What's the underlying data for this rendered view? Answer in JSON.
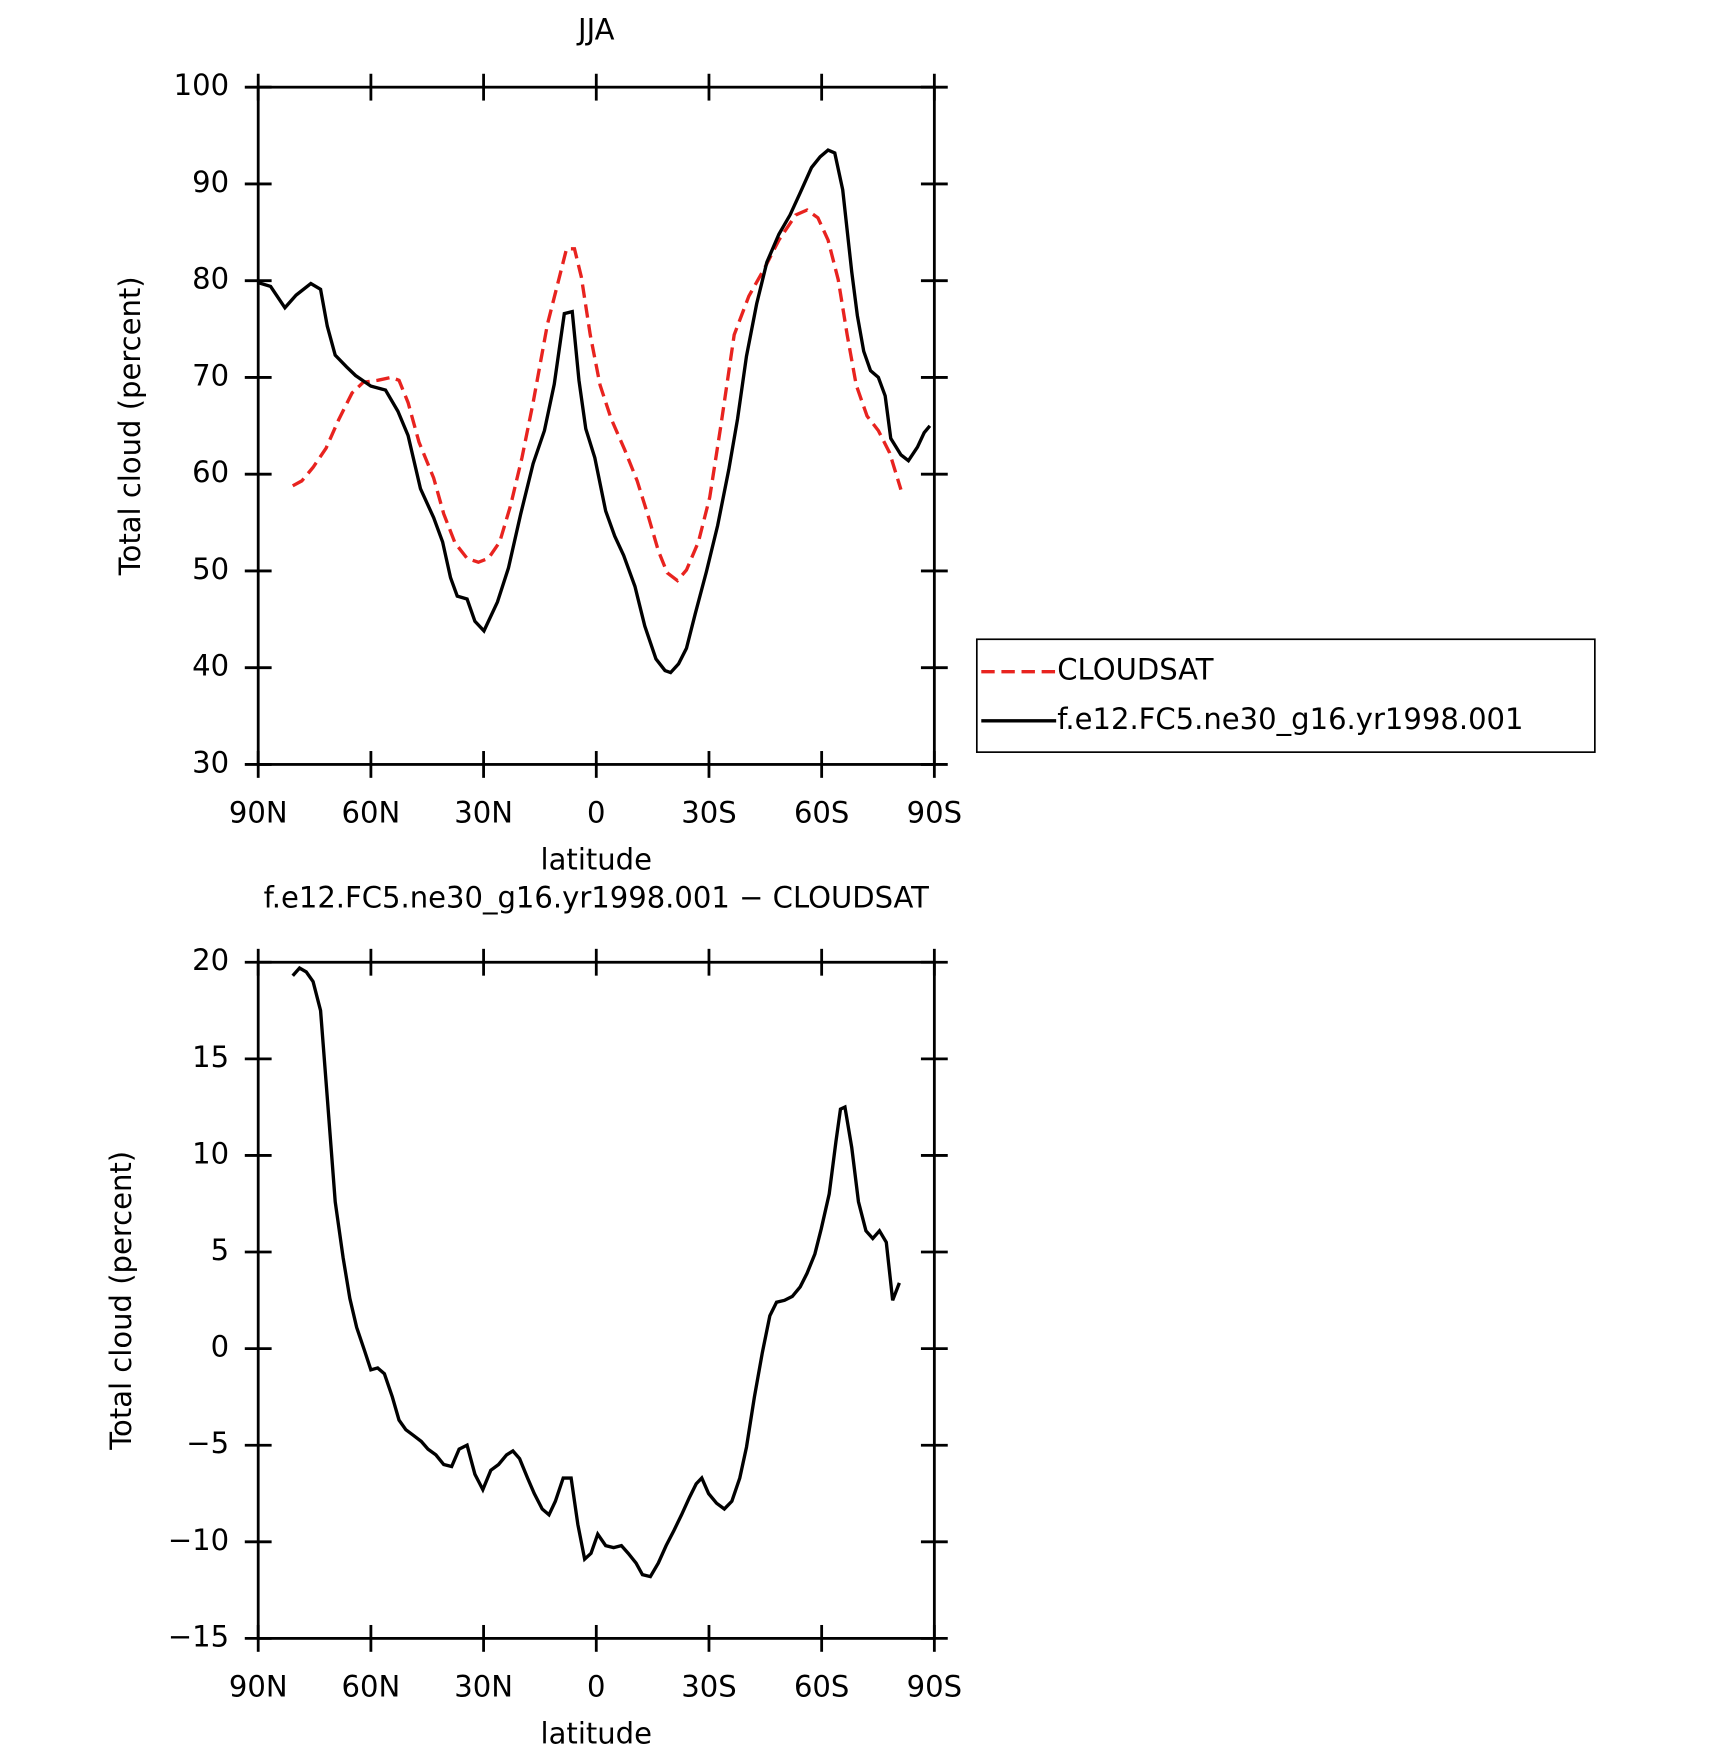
{
  "chart_data": [
    {
      "type": "line",
      "title": "JJA",
      "xlabel": "latitude",
      "ylabel": "Total cloud (percent)",
      "xlim": [
        90,
        -90
      ],
      "xticks": [
        {
          "value": 90,
          "label": "90N"
        },
        {
          "value": 60,
          "label": "60N"
        },
        {
          "value": 30,
          "label": "30N"
        },
        0,
        {
          "value": -30,
          "label": "30S"
        },
        {
          "value": -60,
          "label": "60S"
        },
        {
          "value": -90,
          "label": "90S"
        }
      ],
      "ylim": [
        30,
        100
      ],
      "yticks": [
        30,
        40,
        50,
        60,
        70,
        80,
        90,
        100
      ],
      "legend": "right",
      "series": [
        {
          "name": "CLOUDSAT",
          "color": "#e8231f",
          "line_style": "dashed",
          "x": [
            80.8,
            78.4,
            75.4,
            71.9,
            68.6,
            65,
            62,
            58.2,
            54.6,
            52.5,
            50.1,
            47.2,
            43.3,
            40.6,
            37.6,
            34.4,
            31.4,
            28.7,
            25.7,
            22.8,
            19.8,
            16.8,
            13,
            10,
            7.9,
            5.8,
            4,
            1.6,
            -1,
            -4,
            -7.6,
            -10.9,
            -13.8,
            -16.5,
            -18.9,
            -21.6,
            -24,
            -27.2,
            -30.2,
            -33.2,
            -36.7,
            -40.6,
            -44.8,
            -48.6,
            -53.1,
            -56.1,
            -59,
            -61.7,
            -64.4,
            -66.8,
            -69.2,
            -72.1,
            -75.1,
            -78.1,
            -81.1
          ],
          "values": [
            58.8,
            59.3,
            60.7,
            62.7,
            65.6,
            68.4,
            69.5,
            69.7,
            70,
            69.7,
            67.4,
            63.3,
            59.6,
            55.9,
            52.9,
            51.3,
            50.9,
            51.3,
            53,
            56.8,
            61.7,
            67.4,
            75.5,
            80.1,
            83.3,
            83.3,
            80.4,
            74.4,
            69.2,
            65.7,
            62.5,
            59.3,
            55.7,
            52.1,
            49.8,
            49,
            50.1,
            53,
            57.6,
            65.1,
            74.4,
            78.4,
            81.3,
            84.2,
            86.8,
            87.3,
            86.5,
            84.2,
            80.1,
            74.4,
            69.2,
            66,
            64.5,
            62.2,
            58.4
          ]
        },
        {
          "name": "f.e12.FC5.ne30_g16.yr1998.001",
          "color": "#000000",
          "line_style": "solid",
          "x": [
            90,
            86.7,
            82.9,
            79.9,
            76,
            73.4,
            71.6,
            69.5,
            66.5,
            64.1,
            60,
            56.1,
            52.8,
            50.1,
            46.8,
            43.3,
            40.9,
            38.8,
            37,
            34.4,
            32.3,
            29.9,
            26.3,
            23.4,
            20.1,
            16.8,
            13.8,
            11.2,
            8.5,
            6.4,
            4.6,
            2.8,
            0.4,
            -2.5,
            -4.9,
            -7.3,
            -10.3,
            -12.9,
            -15.9,
            -18.3,
            -19.8,
            -21.9,
            -24,
            -26.3,
            -29.3,
            -32.3,
            -35.3,
            -37.6,
            -40,
            -42.7,
            -45.4,
            -48.6,
            -51.6,
            -54.3,
            -57.3,
            -59.6,
            -61.7,
            -63.5,
            -65.6,
            -68,
            -69.5,
            -71.2,
            -73,
            -75.1,
            -76.9,
            -78.4,
            -81.1,
            -83.1,
            -85.5,
            -87.3,
            -88.8
          ],
          "values": [
            79.8,
            79.4,
            77.2,
            78.5,
            79.7,
            79.1,
            75.3,
            72.3,
            71.1,
            70.2,
            69.1,
            68.7,
            66.5,
            64,
            58.5,
            55.5,
            53,
            49.3,
            47.4,
            47.1,
            44.8,
            43.8,
            46.8,
            50.3,
            55.9,
            61.1,
            64.5,
            69.3,
            76.6,
            76.8,
            69.7,
            64.7,
            61.7,
            56.2,
            53.6,
            51.6,
            48.4,
            44.3,
            40.9,
            39.7,
            39.5,
            40.4,
            42,
            45.5,
            49.9,
            54.7,
            60.5,
            65.7,
            72.2,
            77.6,
            81.9,
            84.8,
            86.8,
            89.1,
            91.7,
            92.8,
            93.5,
            93.2,
            89.4,
            80.9,
            76.4,
            72.7,
            70.7,
            70,
            68.1,
            63.7,
            62,
            61.4,
            62.8,
            64.3,
            65
          ]
        }
      ]
    },
    {
      "type": "line",
      "title": "f.e12.FC5.ne30_g16.yr1998.001 − CLOUDSAT",
      "xlabel": "latitude",
      "ylabel": "Total cloud (percent)",
      "xlim": [
        90,
        -90
      ],
      "xticks": [
        {
          "value": 90,
          "label": "90N"
        },
        {
          "value": 60,
          "label": "60N"
        },
        {
          "value": 30,
          "label": "30N"
        },
        0,
        {
          "value": -30,
          "label": "30S"
        },
        {
          "value": -60,
          "label": "60S"
        },
        {
          "value": -90,
          "label": "90S"
        }
      ],
      "ylim": [
        -15,
        20
      ],
      "yticks": [
        {
          "value": -15,
          "label": "−15"
        },
        {
          "value": -10,
          "label": "−10"
        },
        {
          "value": -5,
          "label": "−5"
        },
        0,
        5,
        10,
        15,
        20
      ],
      "series": [
        {
          "color": "#000000",
          "line_style": "solid",
          "x": [
            80.8,
            79,
            77.2,
            75.4,
            73.4,
            71.6,
            69.5,
            67.4,
            65.6,
            63.8,
            61.7,
            60,
            58.2,
            56.4,
            54.3,
            52.5,
            50.7,
            48.6,
            46.6,
            44.8,
            42.7,
            40.6,
            38.5,
            36.5,
            34.4,
            32.3,
            30.2,
            28.1,
            26,
            23.9,
            22.2,
            20.4,
            18.3,
            16.5,
            14.4,
            12.6,
            10.9,
            8.8,
            6.7,
            4.9,
            3.1,
            1.4,
            -0.4,
            -2.5,
            -4.6,
            -6.7,
            -8.5,
            -10.6,
            -12.3,
            -14.4,
            -16.5,
            -18.6,
            -20.7,
            -22.7,
            -24.8,
            -26.6,
            -28.1,
            -29.9,
            -32,
            -34.1,
            -36.1,
            -38.2,
            -40,
            -42.1,
            -44.2,
            -46.2,
            -48,
            -50.1,
            -52.2,
            -54.3,
            -56.1,
            -58.2,
            -59.9,
            -62,
            -63.8,
            -65,
            -66.2,
            -68,
            -69.8,
            -71.8,
            -73.6,
            -75.4,
            -77.2,
            -78.9,
            -80.7
          ],
          "values": [
            19.3,
            19.7,
            19.5,
            19,
            17.5,
            13,
            7.6,
            4.7,
            2.6,
            1.1,
            -0.1,
            -1.1,
            -1,
            -1.3,
            -2.5,
            -3.7,
            -4.2,
            -4.5,
            -4.8,
            -5.2,
            -5.5,
            -6,
            -6.1,
            -5.2,
            -5,
            -6.5,
            -7.3,
            -6.3,
            -6,
            -5.5,
            -5.3,
            -5.7,
            -6.7,
            -7.5,
            -8.3,
            -8.6,
            -7.9,
            -6.7,
            -6.7,
            -9.1,
            -10.9,
            -10.6,
            -9.6,
            -10.2,
            -10.3,
            -10.2,
            -10.6,
            -11.1,
            -11.7,
            -11.8,
            -11.1,
            -10.2,
            -9.4,
            -8.6,
            -7.7,
            -7,
            -6.7,
            -7.5,
            -8,
            -8.3,
            -7.9,
            -6.7,
            -5.1,
            -2.5,
            -0.2,
            1.7,
            2.4,
            2.5,
            2.7,
            3.2,
            3.9,
            4.9,
            6.2,
            8,
            10.7,
            12.4,
            12.5,
            10.4,
            7.6,
            6.1,
            5.7,
            6.1,
            5.5,
            2.5,
            3.4
          ]
        }
      ]
    }
  ]
}
